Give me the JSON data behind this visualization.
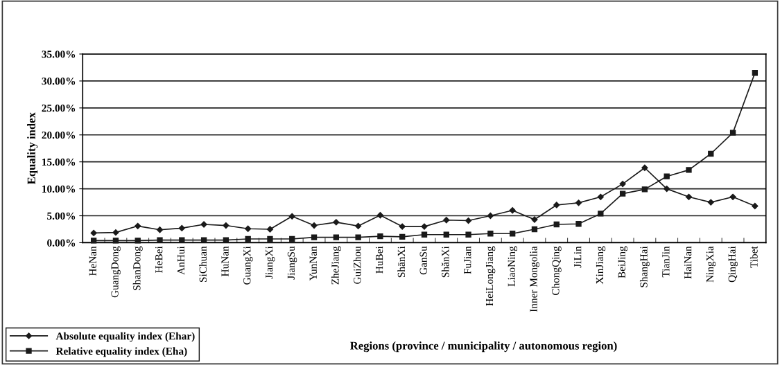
{
  "chart_data": {
    "type": "line",
    "xlabel": "Regions (province / municipality / autonomous region)",
    "ylabel": "Equality index",
    "categories": [
      "HeNan",
      "GuangDong",
      "ShanDong",
      "HeBei",
      "AnHui",
      "SiChuan",
      "HuNan",
      "GuangXi",
      "JiangXi",
      "JiangSu",
      "YunNan",
      "ZheJiang",
      "GuiZhou",
      "HuBei",
      "ShānXi",
      "GanSu",
      "ShǎnXi",
      "FuJian",
      "HeiLongJiang",
      "LiaoNing",
      "Inner Mongolia",
      "ChongQing",
      "JiLin",
      "XinJiang",
      "BeiJing",
      "ShangHai",
      "TianJin",
      "HaiNan",
      "NingXia",
      "QingHai",
      "Tibet"
    ],
    "series": [
      {
        "name": "Absolute equality index (Ehar)",
        "color": "#1a1a1a",
        "marker": "diamond",
        "values": [
          1.8,
          1.9,
          3.1,
          2.4,
          2.7,
          3.4,
          3.2,
          2.6,
          2.5,
          4.9,
          3.2,
          3.8,
          3.1,
          5.1,
          3.0,
          3.0,
          4.2,
          4.1,
          5.0,
          6.0,
          4.3,
          7.0,
          7.4,
          8.5,
          10.9,
          13.9,
          10.0,
          8.5,
          7.5,
          8.5,
          6.8
        ]
      },
      {
        "name": "Relative equality index (Eha)",
        "color": "#1a1a1a",
        "marker": "square",
        "values": [
          0.4,
          0.4,
          0.4,
          0.5,
          0.5,
          0.5,
          0.5,
          0.7,
          0.7,
          0.7,
          1.0,
          1.0,
          1.0,
          1.2,
          1.1,
          1.5,
          1.5,
          1.5,
          1.7,
          1.7,
          2.5,
          3.4,
          3.5,
          5.4,
          9.1,
          9.9,
          12.3,
          13.5,
          16.5,
          20.4,
          31.5
        ]
      }
    ],
    "ylim": [
      0,
      35
    ],
    "yticks": [
      {
        "value": 0,
        "label": "0.00%"
      },
      {
        "value": 5,
        "label": "5.00%"
      },
      {
        "value": 10,
        "label": "10.00%"
      },
      {
        "value": 15,
        "label": "15.00%"
      },
      {
        "value": 20,
        "label": "20.00%"
      },
      {
        "value": 25,
        "label": "25.00%"
      },
      {
        "value": 30,
        "label": "30.00%"
      },
      {
        "value": 35,
        "label": "35.00%"
      }
    ],
    "grid": "y",
    "legend": "bottom left",
    "line_style": "solid"
  }
}
